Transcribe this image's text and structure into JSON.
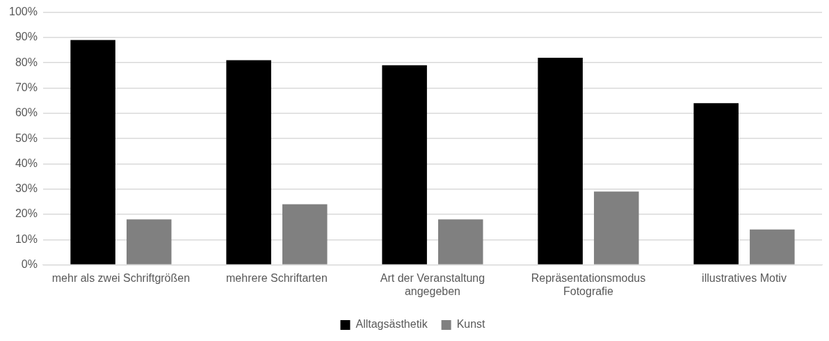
{
  "chart_data": {
    "type": "bar",
    "categories": [
      "mehr als zwei Schriftgrößen",
      "mehrere Schriftarten",
      "Art der Veranstaltung angegeben",
      "Repräsentationsmodus Fotografie",
      "illustratives Motiv"
    ],
    "series": [
      {
        "name": "Alltagsästhetik",
        "color": "#000000",
        "values": [
          89,
          81,
          79,
          82,
          64
        ]
      },
      {
        "name": "Kunst",
        "color": "#808080",
        "values": [
          18,
          24,
          18,
          29,
          14
        ]
      }
    ],
    "ylim": [
      0,
      100
    ],
    "yticks": [
      {
        "value": 0,
        "label": "0%"
      },
      {
        "value": 10,
        "label": "10%"
      },
      {
        "value": 20,
        "label": "20%"
      },
      {
        "value": 30,
        "label": "30%"
      },
      {
        "value": 40,
        "label": "40%"
      },
      {
        "value": 50,
        "label": "50%"
      },
      {
        "value": 60,
        "label": "60%"
      },
      {
        "value": 70,
        "label": "70%"
      },
      {
        "value": 80,
        "label": "80%"
      },
      {
        "value": 90,
        "label": "90%"
      },
      {
        "value": 100,
        "label": "100%"
      }
    ],
    "grid": "y",
    "legend": "bottom"
  }
}
